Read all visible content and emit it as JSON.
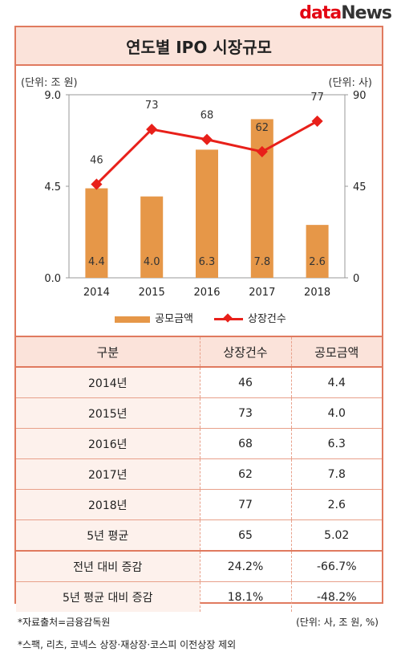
{
  "logo": {
    "part1": "data",
    "part2": "News"
  },
  "title": "연도별 IPO 시장규모",
  "unit_left": "(단위: 조 원)",
  "unit_right": "(단위: 사)",
  "chart_data": {
    "type": "bar",
    "categories": [
      "2014",
      "2015",
      "2016",
      "2017",
      "2018"
    ],
    "series": [
      {
        "name": "공모금액",
        "type": "bar",
        "axis": "left",
        "values": [
          4.4,
          4.0,
          6.3,
          7.8,
          2.6
        ],
        "labels": [
          "4.4",
          "4.0",
          "6.3",
          "7.8",
          "2.6"
        ],
        "color": "#e69748"
      },
      {
        "name": "상장건수",
        "type": "line",
        "axis": "right",
        "values": [
          46,
          73,
          68,
          62,
          77
        ],
        "labels": [
          "46",
          "73",
          "68",
          "62",
          "77"
        ],
        "color": "#e8201a"
      }
    ],
    "y_left": {
      "ylim": [
        0,
        9
      ],
      "ticks": [
        "9.0",
        "4.5",
        "0.0"
      ]
    },
    "y_right": {
      "ylim": [
        0,
        90
      ],
      "ticks": [
        "90",
        "45",
        "0"
      ]
    },
    "grid": false,
    "legend": "bottom"
  },
  "table": {
    "headers": [
      "구분",
      "상장건수",
      "공모금액"
    ],
    "rows": [
      [
        "2014년",
        "46",
        "4.4"
      ],
      [
        "2015년",
        "73",
        "4.0"
      ],
      [
        "2016년",
        "68",
        "6.3"
      ],
      [
        "2017년",
        "62",
        "7.8"
      ],
      [
        "2018년",
        "77",
        "2.6"
      ],
      [
        "5년 평균",
        "65",
        "5.02"
      ],
      [
        "전년 대비 증감",
        "24.2%",
        "-66.7%"
      ],
      [
        "5년 평균 대비 증감",
        "18.1%",
        "-48.2%"
      ]
    ]
  },
  "footnotes": {
    "source": "*자료출처=금융감독원",
    "units": "(단위: 사, 조 원, %)",
    "note": "*스팩, 리츠, 코넥스 상장·재상장·코스피 이전상장 제외"
  }
}
